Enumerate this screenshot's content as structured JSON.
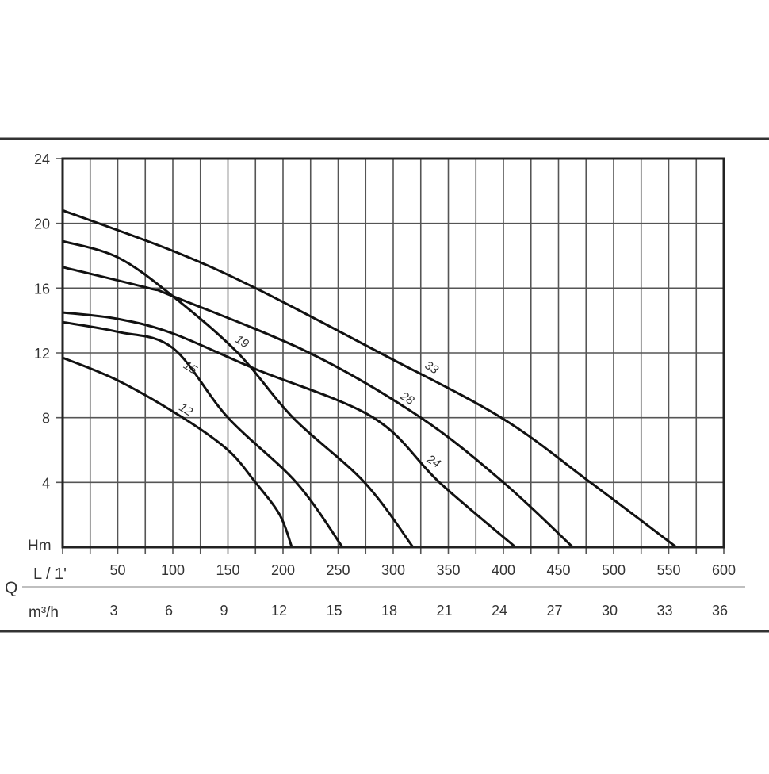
{
  "chart_data": {
    "type": "line",
    "x_axis": {
      "label": "L / 1'",
      "range": [
        0,
        600
      ],
      "ticks": [
        50,
        100,
        150,
        200,
        250,
        300,
        350,
        400,
        450,
        500,
        550,
        600
      ],
      "grid_step": 25
    },
    "x_axis_secondary": {
      "label": "m³/h",
      "ticks": [
        3,
        6,
        9,
        12,
        15,
        18,
        21,
        24,
        27,
        30,
        33,
        36
      ]
    },
    "q_label": "Q",
    "y_axis": {
      "label": "Hm",
      "range": [
        0,
        24
      ],
      "ticks": [
        4,
        8,
        12,
        16,
        20,
        24
      ],
      "grid_step": 4
    },
    "grid": true,
    "series": [
      {
        "name": "12",
        "points": [
          [
            0,
            11.7
          ],
          [
            50,
            10.3
          ],
          [
            109,
            8
          ],
          [
            150,
            6
          ],
          [
            175,
            4
          ],
          [
            197,
            2
          ],
          [
            208,
            0
          ]
        ]
      },
      {
        "name": "15",
        "points": [
          [
            0,
            13.9
          ],
          [
            50,
            13.3
          ],
          [
            100,
            12.3
          ],
          [
            150,
            8
          ],
          [
            212,
            4
          ],
          [
            254,
            0
          ]
        ]
      },
      {
        "name": "19",
        "points": [
          [
            0,
            18.9
          ],
          [
            50,
            17.9
          ],
          [
            100,
            15.5
          ],
          [
            159,
            12
          ],
          [
            209,
            8
          ],
          [
            274,
            4
          ],
          [
            318,
            0
          ]
        ]
      },
      {
        "name": "24",
        "points": [
          [
            0,
            14.5
          ],
          [
            50,
            14.1
          ],
          [
            100,
            13.2
          ],
          [
            175,
            11
          ],
          [
            282,
            8
          ],
          [
            342,
            4
          ],
          [
            411,
            0
          ]
        ]
      },
      {
        "name": "28",
        "points": [
          [
            0,
            17.3
          ],
          [
            78,
            16
          ],
          [
            100,
            15.5
          ],
          [
            224,
            12
          ],
          [
            325,
            8
          ],
          [
            400,
            4
          ],
          [
            463,
            0
          ]
        ]
      },
      {
        "name": "33",
        "points": [
          [
            0,
            20.8
          ],
          [
            100,
            18.3
          ],
          [
            175,
            16
          ],
          [
            288,
            12
          ],
          [
            398,
            8
          ],
          [
            479,
            4
          ],
          [
            557,
            0
          ]
        ]
      }
    ],
    "curve_labels": [
      {
        "text": "12",
        "at": [
          110,
          8.3
        ]
      },
      {
        "text": "15",
        "at": [
          114,
          10.9
        ]
      },
      {
        "text": "19",
        "at": [
          161,
          12.5
        ]
      },
      {
        "text": "24",
        "at": [
          335,
          5.1
        ]
      },
      {
        "text": "28",
        "at": [
          311,
          9.0
        ]
      },
      {
        "text": "33",
        "at": [
          333,
          10.9
        ]
      }
    ]
  }
}
